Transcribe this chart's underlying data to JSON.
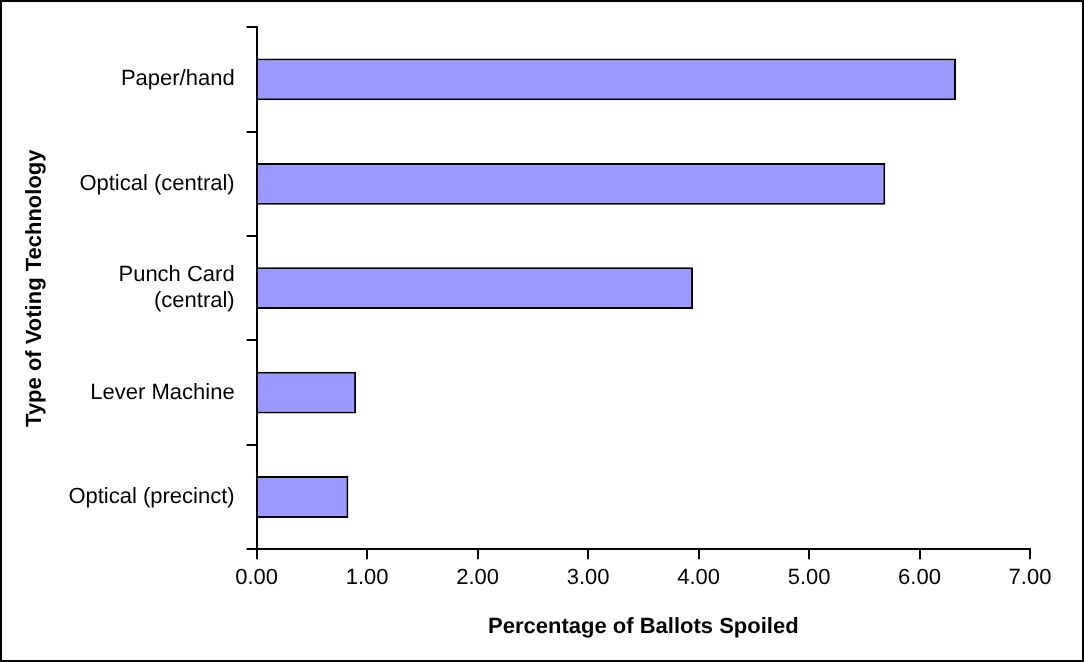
{
  "chart_data": {
    "type": "bar",
    "orientation": "horizontal",
    "xlabel": "Percentage of Ballots Spoiled",
    "ylabel": "Type of Voting Technology",
    "categories": [
      "Paper/hand",
      "Optical (central)",
      "Punch Card\n(central)",
      "Lever Machine",
      "Optical (precinct)"
    ],
    "values": [
      6.33,
      5.69,
      3.95,
      0.9,
      0.83
    ],
    "color": "#9999ff",
    "xlim": [
      0,
      7
    ],
    "xticks": [
      {
        "value": 0,
        "label": "0.00"
      },
      {
        "value": 1,
        "label": "1.00"
      },
      {
        "value": 2,
        "label": "2.00"
      },
      {
        "value": 3,
        "label": "3.00"
      },
      {
        "value": 4,
        "label": "4.00"
      },
      {
        "value": 5,
        "label": "5.00"
      },
      {
        "value": 6,
        "label": "6.00"
      },
      {
        "value": 7,
        "label": "7.00"
      }
    ],
    "grid": false,
    "legend": false
  }
}
